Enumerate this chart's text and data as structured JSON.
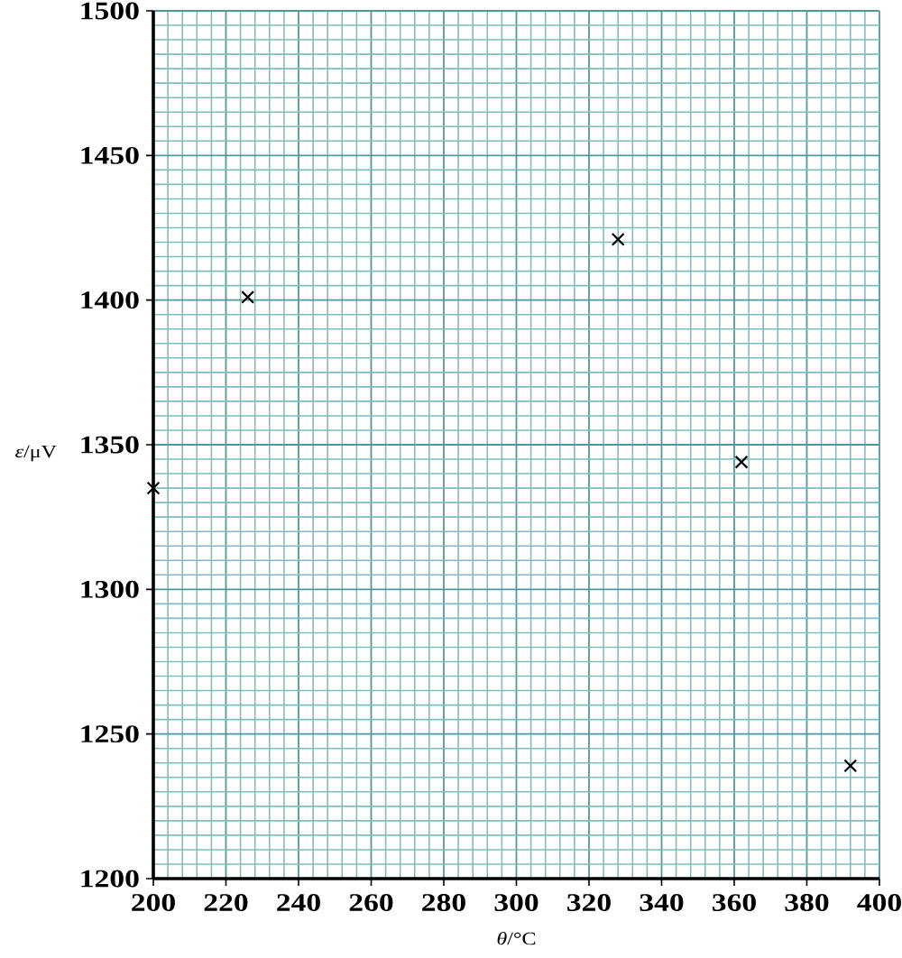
{
  "chart_data": {
    "type": "scatter",
    "xlabel": "*θ*/°C",
    "ylabel": "*ε*/μV",
    "x": [
      200,
      226,
      328,
      362,
      392
    ],
    "values": [
      1335,
      1401,
      1421,
      1344,
      1239
    ],
    "color": "#000000",
    "marker": "cross",
    "xlim": [
      200,
      400
    ],
    "ylim": [
      1200,
      1500
    ],
    "xticks": [
      200,
      {
        "value": 204,
        "label": null
      },
      {
        "value": 208,
        "label": null
      },
      {
        "value": 212,
        "label": null
      },
      {
        "value": 216,
        "label": null
      },
      220,
      {
        "value": 224,
        "label": null
      },
      {
        "value": 228,
        "label": null
      },
      {
        "value": 232,
        "label": null
      },
      {
        "value": 236,
        "label": null
      },
      240,
      {
        "value": 244,
        "label": null
      },
      {
        "value": 248,
        "label": null
      },
      {
        "value": 252,
        "label": null
      },
      {
        "value": 256,
        "label": null
      },
      260,
      {
        "value": 264,
        "label": null
      },
      {
        "value": 268,
        "label": null
      },
      {
        "value": 272,
        "label": null
      },
      {
        "value": 276,
        "label": null
      },
      280,
      {
        "value": 284,
        "label": null
      },
      {
        "value": 288,
        "label": null
      },
      {
        "value": 292,
        "label": null
      },
      {
        "value": 296,
        "label": null
      },
      300,
      {
        "value": 304,
        "label": null
      },
      {
        "value": 308,
        "label": null
      },
      {
        "value": 312,
        "label": null
      },
      {
        "value": 316,
        "label": null
      },
      320,
      {
        "value": 324,
        "label": null
      },
      {
        "value": 328,
        "label": null
      },
      {
        "value": 332,
        "label": null
      },
      {
        "value": 336,
        "label": null
      },
      340,
      {
        "value": 344,
        "label": null
      },
      {
        "value": 348,
        "label": null
      },
      {
        "value": 352,
        "label": null
      },
      {
        "value": 356,
        "label": null
      },
      360,
      {
        "value": 364,
        "label": null
      },
      {
        "value": 368,
        "label": null
      },
      {
        "value": 372,
        "label": null
      },
      {
        "value": 376,
        "label": null
      },
      380,
      {
        "value": 384,
        "label": null
      },
      {
        "value": 388,
        "label": null
      },
      {
        "value": 392,
        "label": null
      },
      {
        "value": 396,
        "label": null
      },
      400
    ],
    "yticks": [
      1200,
      {
        "value": 1205,
        "label": null
      },
      {
        "value": 1210,
        "label": null
      },
      {
        "value": 1215,
        "label": null
      },
      {
        "value": 1220,
        "label": null
      },
      {
        "value": 1225,
        "label": null
      },
      {
        "value": 1230,
        "label": null
      },
      {
        "value": 1235,
        "label": null
      },
      {
        "value": 1240,
        "label": null
      },
      {
        "value": 1245,
        "label": null
      },
      1250,
      {
        "value": 1255,
        "label": null
      },
      {
        "value": 1260,
        "label": null
      },
      {
        "value": 1265,
        "label": null
      },
      {
        "value": 1270,
        "label": null
      },
      {
        "value": 1275,
        "label": null
      },
      {
        "value": 1280,
        "label": null
      },
      {
        "value": 1285,
        "label": null
      },
      {
        "value": 1290,
        "label": null
      },
      {
        "value": 1295,
        "label": null
      },
      1300,
      {
        "value": 1305,
        "label": null
      },
      {
        "value": 1310,
        "label": null
      },
      {
        "value": 1315,
        "label": null
      },
      {
        "value": 1320,
        "label": null
      },
      {
        "value": 1325,
        "label": null
      },
      {
        "value": 1330,
        "label": null
      },
      {
        "value": 1335,
        "label": null
      },
      {
        "value": 1340,
        "label": null
      },
      {
        "value": 1345,
        "label": null
      },
      1350,
      {
        "value": 1355,
        "label": null
      },
      {
        "value": 1360,
        "label": null
      },
      {
        "value": 1365,
        "label": null
      },
      {
        "value": 1370,
        "label": null
      },
      {
        "value": 1375,
        "label": null
      },
      {
        "value": 1380,
        "label": null
      },
      {
        "value": 1385,
        "label": null
      },
      {
        "value": 1390,
        "label": null
      },
      {
        "value": 1395,
        "label": null
      },
      1400,
      {
        "value": 1405,
        "label": null
      },
      {
        "value": 1410,
        "label": null
      },
      {
        "value": 1415,
        "label": null
      },
      {
        "value": 1420,
        "label": null
      },
      {
        "value": 1425,
        "label": null
      },
      {
        "value": 1430,
        "label": null
      },
      {
        "value": 1435,
        "label": null
      },
      {
        "value": 1440,
        "label": null
      },
      {
        "value": 1445,
        "label": null
      },
      1450,
      {
        "value": 1455,
        "label": null
      },
      {
        "value": 1460,
        "label": null
      },
      {
        "value": 1465,
        "label": null
      },
      {
        "value": 1470,
        "label": null
      },
      {
        "value": 1475,
        "label": null
      },
      {
        "value": 1480,
        "label": null
      },
      {
        "value": 1485,
        "label": null
      },
      {
        "value": 1490,
        "label": null
      },
      {
        "value": 1495,
        "label": null
      },
      1500
    ],
    "grid": true
  }
}
